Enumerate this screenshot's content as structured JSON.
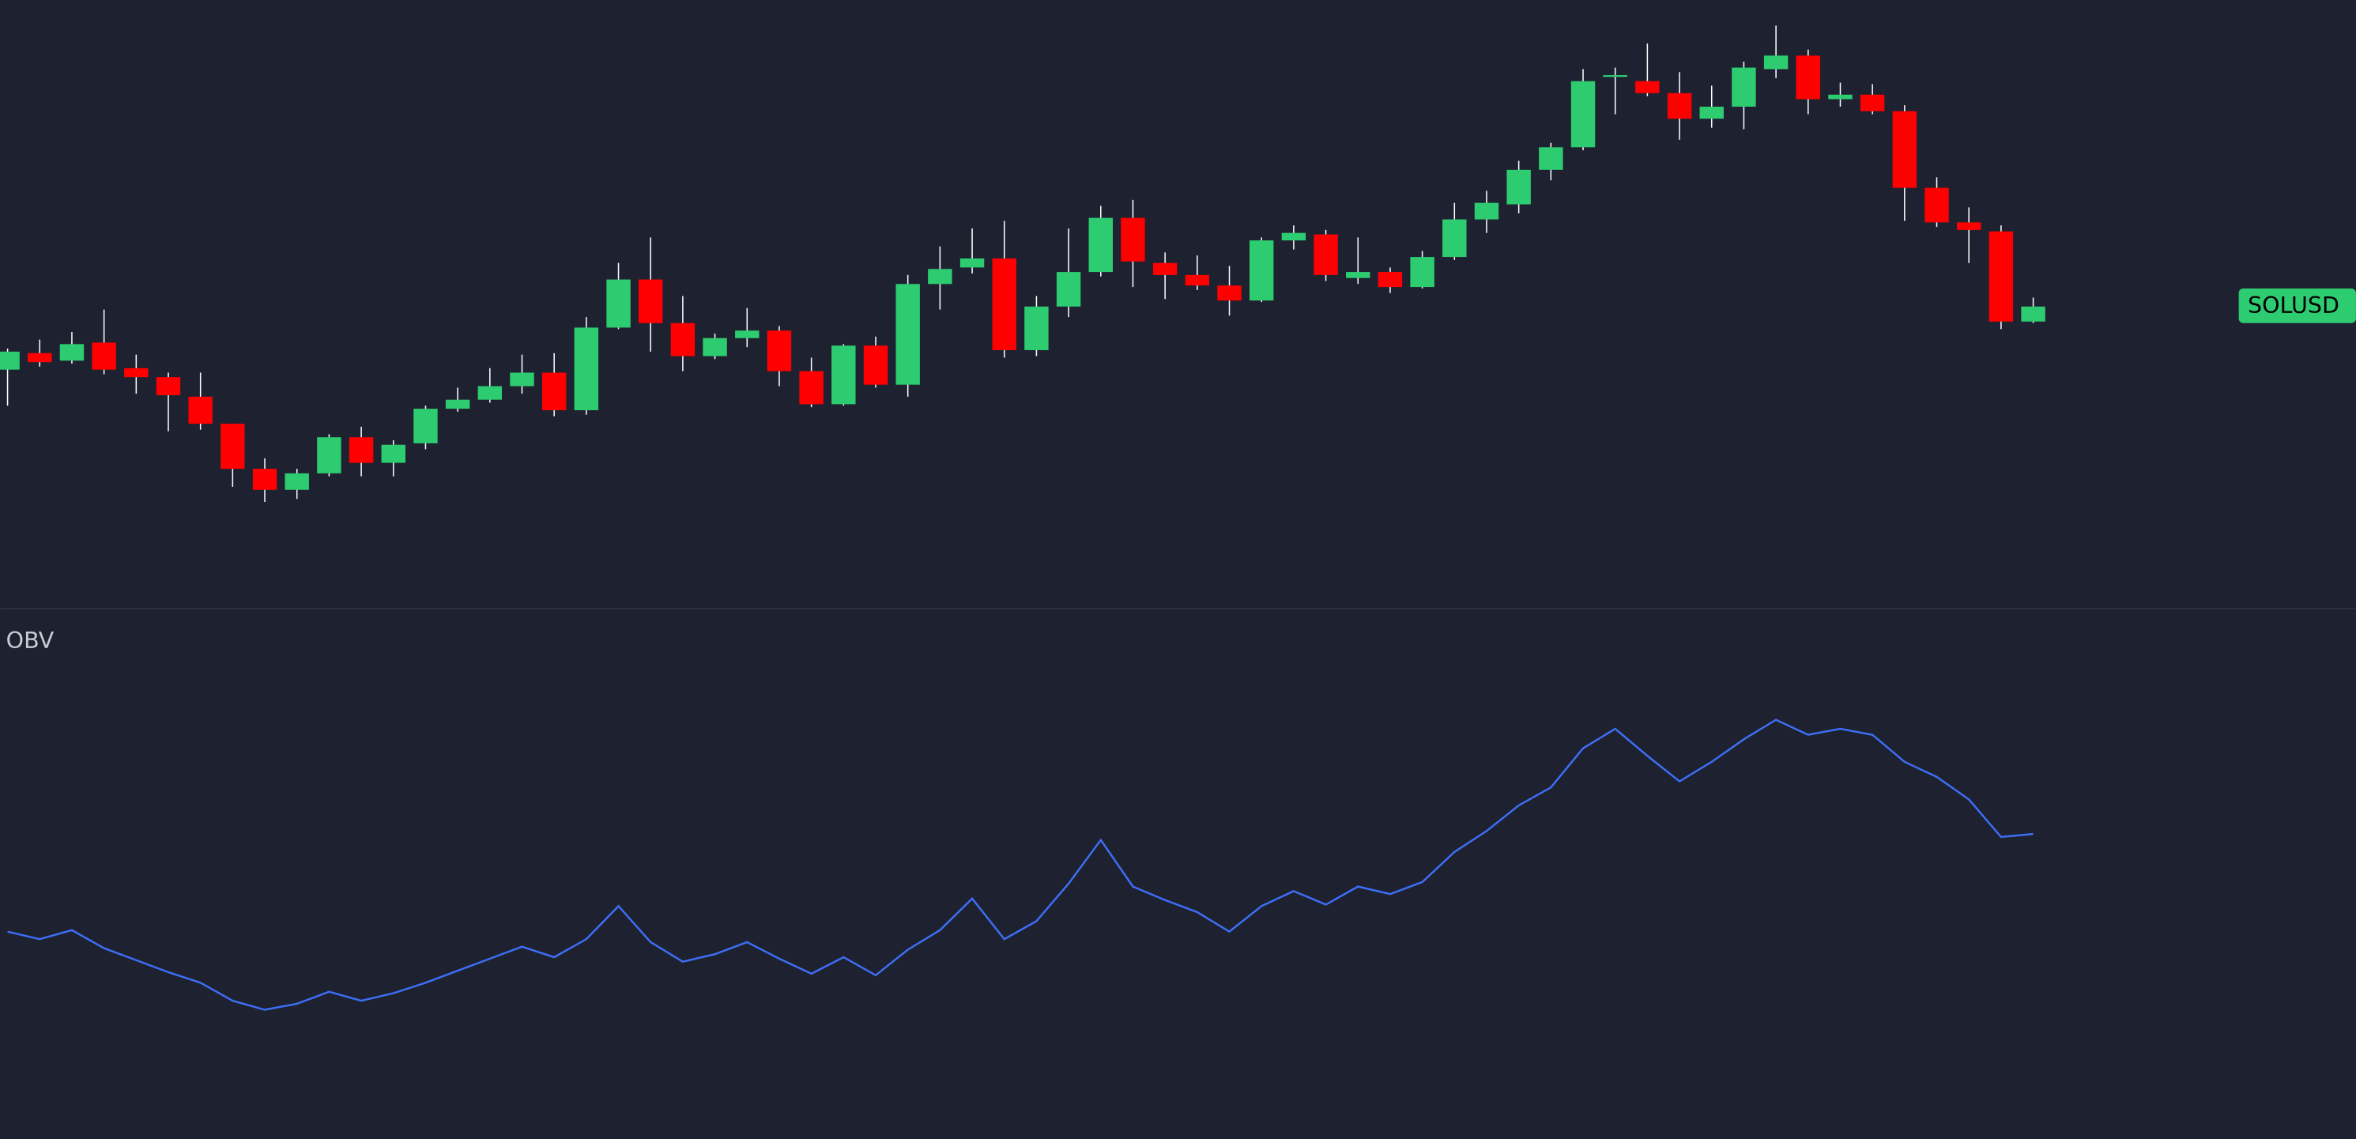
{
  "chart_data": [
    {
      "type": "candlestick",
      "label": "SOLUSD",
      "up_color": "#2ecc71",
      "down_color": "#ff0000",
      "wick_color": "#ffffff",
      "ylim": [
        -5,
        400
      ],
      "open": [
        154,
        165,
        160,
        172,
        155,
        149,
        136,
        118,
        88,
        74,
        85,
        109,
        92,
        105,
        128,
        134,
        143,
        152,
        127,
        182,
        214,
        185,
        163,
        175,
        180,
        153,
        131,
        170,
        144,
        211,
        222,
        228,
        167,
        196,
        219,
        255,
        225,
        217,
        210,
        200,
        240,
        244,
        215,
        219,
        209,
        229,
        254,
        264,
        287,
        302,
        349,
        346,
        338,
        321,
        329,
        354,
        363,
        334,
        337,
        326,
        275,
        252,
        246,
        186
      ],
      "high": [
        168,
        174,
        179,
        194,
        164,
        152,
        152,
        118,
        95,
        88,
        111,
        116,
        107,
        130,
        142,
        155,
        164,
        165,
        189,
        225,
        242,
        203,
        178,
        195,
        183,
        162,
        171,
        176,
        217,
        236,
        248,
        253,
        203,
        248,
        263,
        267,
        232,
        230,
        223,
        242,
        250,
        247,
        242,
        222,
        233,
        265,
        273,
        293,
        305,
        354,
        355,
        371,
        352,
        343,
        359,
        383,
        367,
        345,
        344,
        330,
        282,
        262,
        250,
        202
      ],
      "low": [
        130,
        156,
        158,
        151,
        138,
        113,
        114,
        76,
        66,
        68,
        83,
        83,
        83,
        101,
        126,
        132,
        138,
        123,
        124,
        181,
        166,
        153,
        161,
        169,
        143,
        129,
        130,
        142,
        136,
        194,
        218,
        162,
        163,
        189,
        216,
        209,
        201,
        207,
        190,
        199,
        234,
        213,
        211,
        205,
        208,
        227,
        245,
        258,
        280,
        300,
        324,
        336,
        307,
        315,
        314,
        348,
        324,
        329,
        324,
        253,
        249,
        225,
        181,
        185
      ],
      "close": [
        166,
        159,
        171,
        154,
        149,
        137,
        118,
        88,
        74,
        85,
        109,
        92,
        104,
        128,
        134,
        143,
        152,
        127,
        182,
        214,
        185,
        163,
        175,
        180,
        153,
        131,
        170,
        144,
        211,
        221,
        228,
        167,
        196,
        219,
        255,
        226,
        217,
        210,
        200,
        240,
        245,
        217,
        219,
        209,
        229,
        254,
        265,
        287,
        302,
        346,
        350,
        338,
        321,
        329,
        355,
        363,
        334,
        337,
        326,
        275,
        252,
        247,
        186,
        196
      ]
    },
    {
      "type": "line",
      "title": "OBV",
      "color": "#3d6ef5",
      "ylim": [
        2,
        355
      ],
      "values": [
        140,
        135,
        141,
        129,
        121,
        113,
        106,
        94,
        88,
        92,
        100,
        94,
        99,
        106,
        114,
        122,
        130,
        123,
        135,
        157,
        133,
        120,
        125,
        133,
        122,
        112,
        123,
        111,
        128,
        141,
        162,
        135,
        147,
        172,
        201,
        170,
        161,
        153,
        140,
        157,
        167,
        158,
        170,
        165,
        173,
        193,
        207,
        224,
        236,
        262,
        275,
        257,
        240,
        253,
        268,
        281,
        271,
        275,
        271,
        253,
        243,
        228,
        203,
        205
      ]
    }
  ]
}
